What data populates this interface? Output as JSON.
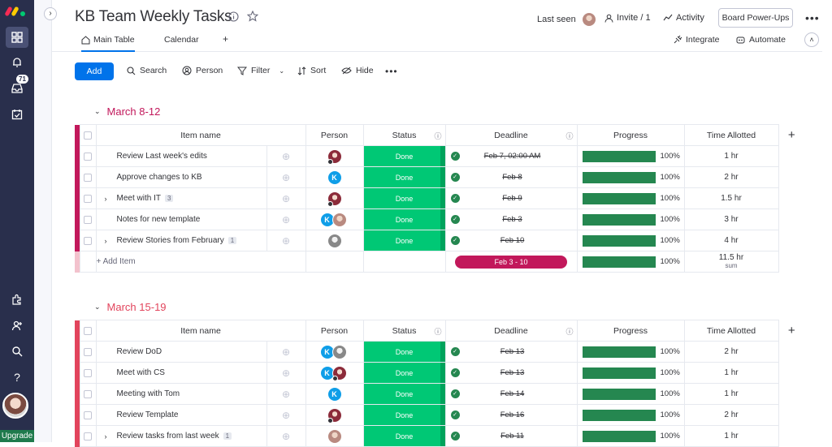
{
  "rail": {
    "inbox_badge": "71",
    "upgrade_label": "Upgrade"
  },
  "header": {
    "title": "KB Team Weekly Tasks",
    "last_seen": "Last seen",
    "invite": "Invite / 1",
    "activity": "Activity",
    "board_powerups": "Board Power-Ups"
  },
  "tabs": {
    "main_table": "Main Table",
    "calendar": "Calendar",
    "add": "+",
    "integrate": "Integrate",
    "automate": "Automate"
  },
  "toolbar": {
    "add": "Add",
    "search": "Search",
    "person": "Person",
    "filter": "Filter",
    "sort": "Sort",
    "hide": "Hide"
  },
  "columns": {
    "item": "Item name",
    "person": "Person",
    "status": "Status",
    "deadline": "Deadline",
    "progress": "Progress",
    "time": "Time Allotted"
  },
  "groups": [
    {
      "title": "March 8-12",
      "color": "#c2185b",
      "rows": [
        {
          "name": "Review Last week's edits",
          "sub": "",
          "persons": [
            "p1"
          ],
          "status": "Done",
          "deadline": "Feb 7, 02:00 AM",
          "progress": 100,
          "progress_label": "100%",
          "time": "1 hr"
        },
        {
          "name": "Approve changes to KB",
          "sub": "",
          "persons": [
            "k"
          ],
          "status": "Done",
          "deadline": "Feb 8",
          "progress": 100,
          "progress_label": "100%",
          "time": "2 hr"
        },
        {
          "name": "Meet with IT",
          "sub": "3",
          "persons": [
            "p1"
          ],
          "status": "Done",
          "deadline": "Feb 9",
          "progress": 100,
          "progress_label": "100%",
          "time": "1.5 hr"
        },
        {
          "name": "Notes for new template",
          "sub": "",
          "persons": [
            "k",
            "p2"
          ],
          "status": "Done",
          "deadline": "Feb 3",
          "progress": 100,
          "progress_label": "100%",
          "time": "3 hr"
        },
        {
          "name": "Review Stories from February",
          "sub": "1",
          "persons": [
            "p3"
          ],
          "status": "Done",
          "deadline": "Feb 10",
          "progress": 100,
          "progress_label": "100%",
          "time": "4 hr"
        }
      ],
      "summary": {
        "add_item": "+ Add Item",
        "range": "Feb 3 - 10",
        "progress_label": "100%",
        "time": "11.5 hr",
        "time_note": "sum"
      }
    },
    {
      "title": "March 15-19",
      "color": "#e2445c",
      "rows": [
        {
          "name": "Review DoD",
          "sub": "",
          "persons": [
            "k",
            "p3"
          ],
          "status": "Done",
          "deadline": "Feb 13",
          "progress": 100,
          "progress_label": "100%",
          "time": "2 hr"
        },
        {
          "name": "Meet with CS",
          "sub": "",
          "persons": [
            "k",
            "p1"
          ],
          "status": "Done",
          "deadline": "Feb 13",
          "progress": 100,
          "progress_label": "100%",
          "time": "1 hr"
        },
        {
          "name": "Meeting with Tom",
          "sub": "",
          "persons": [
            "k"
          ],
          "status": "Done",
          "deadline": "Feb 14",
          "progress": 100,
          "progress_label": "100%",
          "time": "1 hr"
        },
        {
          "name": "Review Template",
          "sub": "",
          "persons": [
            "p1"
          ],
          "status": "Done",
          "deadline": "Feb 16",
          "progress": 100,
          "progress_label": "100%",
          "time": "2 hr"
        },
        {
          "name": "Review tasks from last week",
          "sub": "1",
          "persons": [
            "p2"
          ],
          "status": "Done",
          "deadline": "Feb 11",
          "progress": 100,
          "progress_label": "100%",
          "time": "1 hr"
        }
      ]
    }
  ]
}
